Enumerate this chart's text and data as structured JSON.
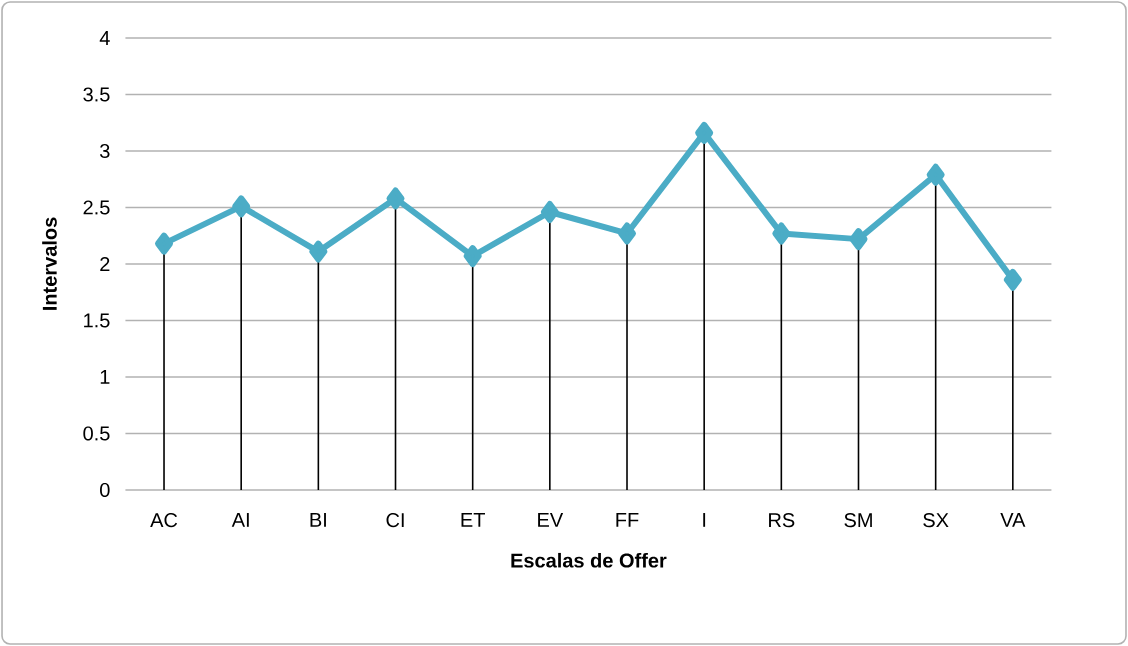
{
  "chart_data": {
    "type": "line",
    "xlabel": "Escalas de Offer",
    "ylabel": "Intervalos",
    "categories": [
      "AC",
      "AI",
      "BI",
      "CI",
      "ET",
      "EV",
      "FF",
      "I",
      "RS",
      "SM",
      "SX",
      "VA"
    ],
    "series": [
      {
        "color": "#4bacc6",
        "values": [
          2.18,
          2.51,
          2.11,
          2.58,
          2.07,
          2.46,
          2.27,
          3.16,
          2.27,
          2.22,
          2.79,
          1.86
        ],
        "errors": [
          [
            0,
            2.18
          ],
          [
            0,
            2.51
          ],
          [
            0,
            2.11
          ],
          [
            0,
            2.58
          ],
          [
            0,
            2.07
          ],
          [
            0,
            2.46
          ],
          [
            0,
            2.27
          ],
          [
            0,
            3.16
          ],
          [
            0,
            2.27
          ],
          [
            0,
            2.22
          ],
          [
            0,
            2.79
          ],
          [
            0,
            1.86
          ]
        ]
      }
    ],
    "ylim": [
      0,
      4
    ],
    "yticks": [
      0,
      0.5,
      1,
      1.5,
      2,
      2.5,
      3,
      3.5,
      4
    ],
    "grid": "y",
    "marker": "diamond",
    "line_style": "solid"
  }
}
